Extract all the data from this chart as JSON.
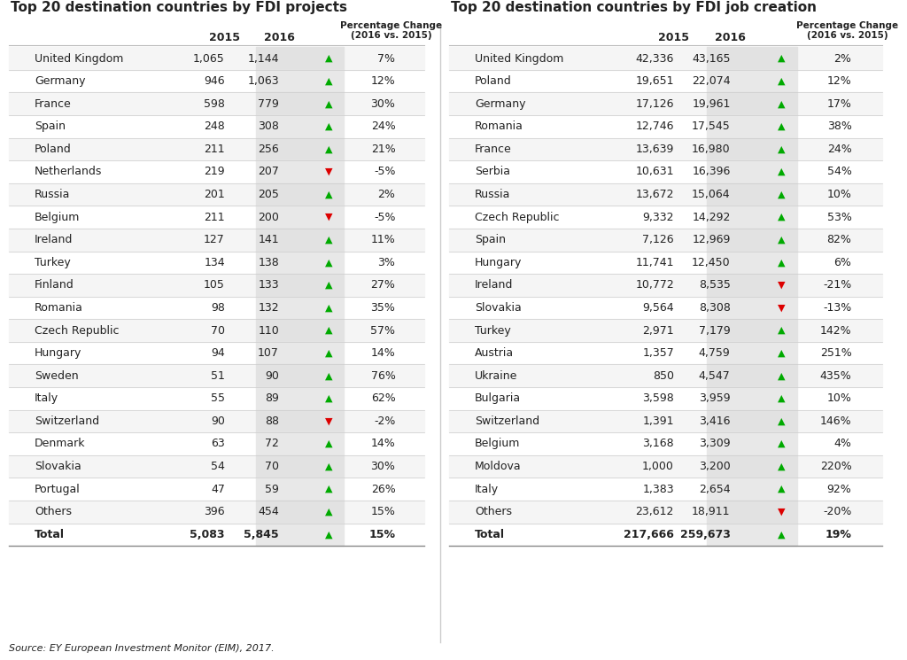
{
  "title_left": "Top 20 destination countries by FDI projects",
  "title_right": "Top 20 destination countries by FDI job creation",
  "source": "Source: EY European Investment Monitor (EIM), 2017.",
  "col_header_2015": "2015",
  "col_header_2016": "2016",
  "col_header_pct": "Percentage Change\n(2016 vs. 2015)",
  "left_table": {
    "countries": [
      "United Kingdom",
      "Germany",
      "France",
      "Spain",
      "Poland",
      "Netherlands",
      "Russia",
      "Belgium",
      "Ireland",
      "Turkey",
      "Finland",
      "Romania",
      "Czech Republic",
      "Hungary",
      "Sweden",
      "Italy",
      "Switzerland",
      "Denmark",
      "Slovakia",
      "Portugal",
      "Others",
      "Total"
    ],
    "val2015": [
      "1,065",
      "946",
      "598",
      "248",
      "211",
      "219",
      "201",
      "211",
      "127",
      "134",
      "105",
      "98",
      "70",
      "94",
      "51",
      "55",
      "90",
      "63",
      "54",
      "47",
      "396",
      "5,083"
    ],
    "val2016": [
      "1,144",
      "1,063",
      "779",
      "308",
      "256",
      "207",
      "205",
      "200",
      "141",
      "138",
      "133",
      "132",
      "110",
      "107",
      "90",
      "89",
      "88",
      "72",
      "70",
      "59",
      "454",
      "5,845"
    ],
    "pct": [
      "7%",
      "12%",
      "30%",
      "24%",
      "21%",
      "-5%",
      "2%",
      "-5%",
      "11%",
      "3%",
      "27%",
      "35%",
      "57%",
      "14%",
      "76%",
      "62%",
      "-2%",
      "14%",
      "30%",
      "26%",
      "15%",
      "15%"
    ],
    "arrow_up": [
      true,
      true,
      true,
      true,
      true,
      false,
      true,
      false,
      true,
      true,
      true,
      true,
      true,
      true,
      true,
      true,
      false,
      true,
      true,
      true,
      true,
      true
    ]
  },
  "right_table": {
    "countries": [
      "United Kingdom",
      "Poland",
      "Germany",
      "Romania",
      "France",
      "Serbia",
      "Russia",
      "Czech Republic",
      "Spain",
      "Hungary",
      "Ireland",
      "Slovakia",
      "Turkey",
      "Austria",
      "Ukraine",
      "Bulgaria",
      "Switzerland",
      "Belgium",
      "Moldova",
      "Italy",
      "Others",
      "Total"
    ],
    "val2015": [
      "42,336",
      "19,651",
      "17,126",
      "12,746",
      "13,639",
      "10,631",
      "13,672",
      "9,332",
      "7,126",
      "11,741",
      "10,772",
      "9,564",
      "2,971",
      "1,357",
      "850",
      "3,598",
      "1,391",
      "3,168",
      "1,000",
      "1,383",
      "23,612",
      "217,666"
    ],
    "val2016": [
      "43,165",
      "22,074",
      "19,961",
      "17,545",
      "16,980",
      "16,396",
      "15,064",
      "14,292",
      "12,969",
      "12,450",
      "8,535",
      "8,308",
      "7,179",
      "4,759",
      "4,547",
      "3,959",
      "3,416",
      "3,309",
      "3,200",
      "2,654",
      "18,911",
      "259,673"
    ],
    "pct": [
      "2%",
      "12%",
      "17%",
      "38%",
      "24%",
      "54%",
      "10%",
      "53%",
      "82%",
      "6%",
      "-21%",
      "-13%",
      "142%",
      "251%",
      "435%",
      "10%",
      "146%",
      "4%",
      "220%",
      "92%",
      "-20%",
      "19%"
    ],
    "arrow_up": [
      true,
      true,
      true,
      true,
      true,
      true,
      true,
      true,
      true,
      true,
      false,
      false,
      true,
      true,
      true,
      true,
      true,
      true,
      true,
      true,
      false,
      true
    ]
  },
  "bg_color": "#ffffff",
  "header_color": "#ffffff",
  "row_alt_color": "#f2f2f2",
  "col2016_bg": "#e8e8e8",
  "green_arrow": "#00aa00",
  "red_arrow": "#dd0000",
  "text_color": "#222222",
  "bold_rows": [
    21
  ],
  "title_fontsize": 11,
  "header_fontsize": 9,
  "data_fontsize": 9,
  "source_fontsize": 8
}
